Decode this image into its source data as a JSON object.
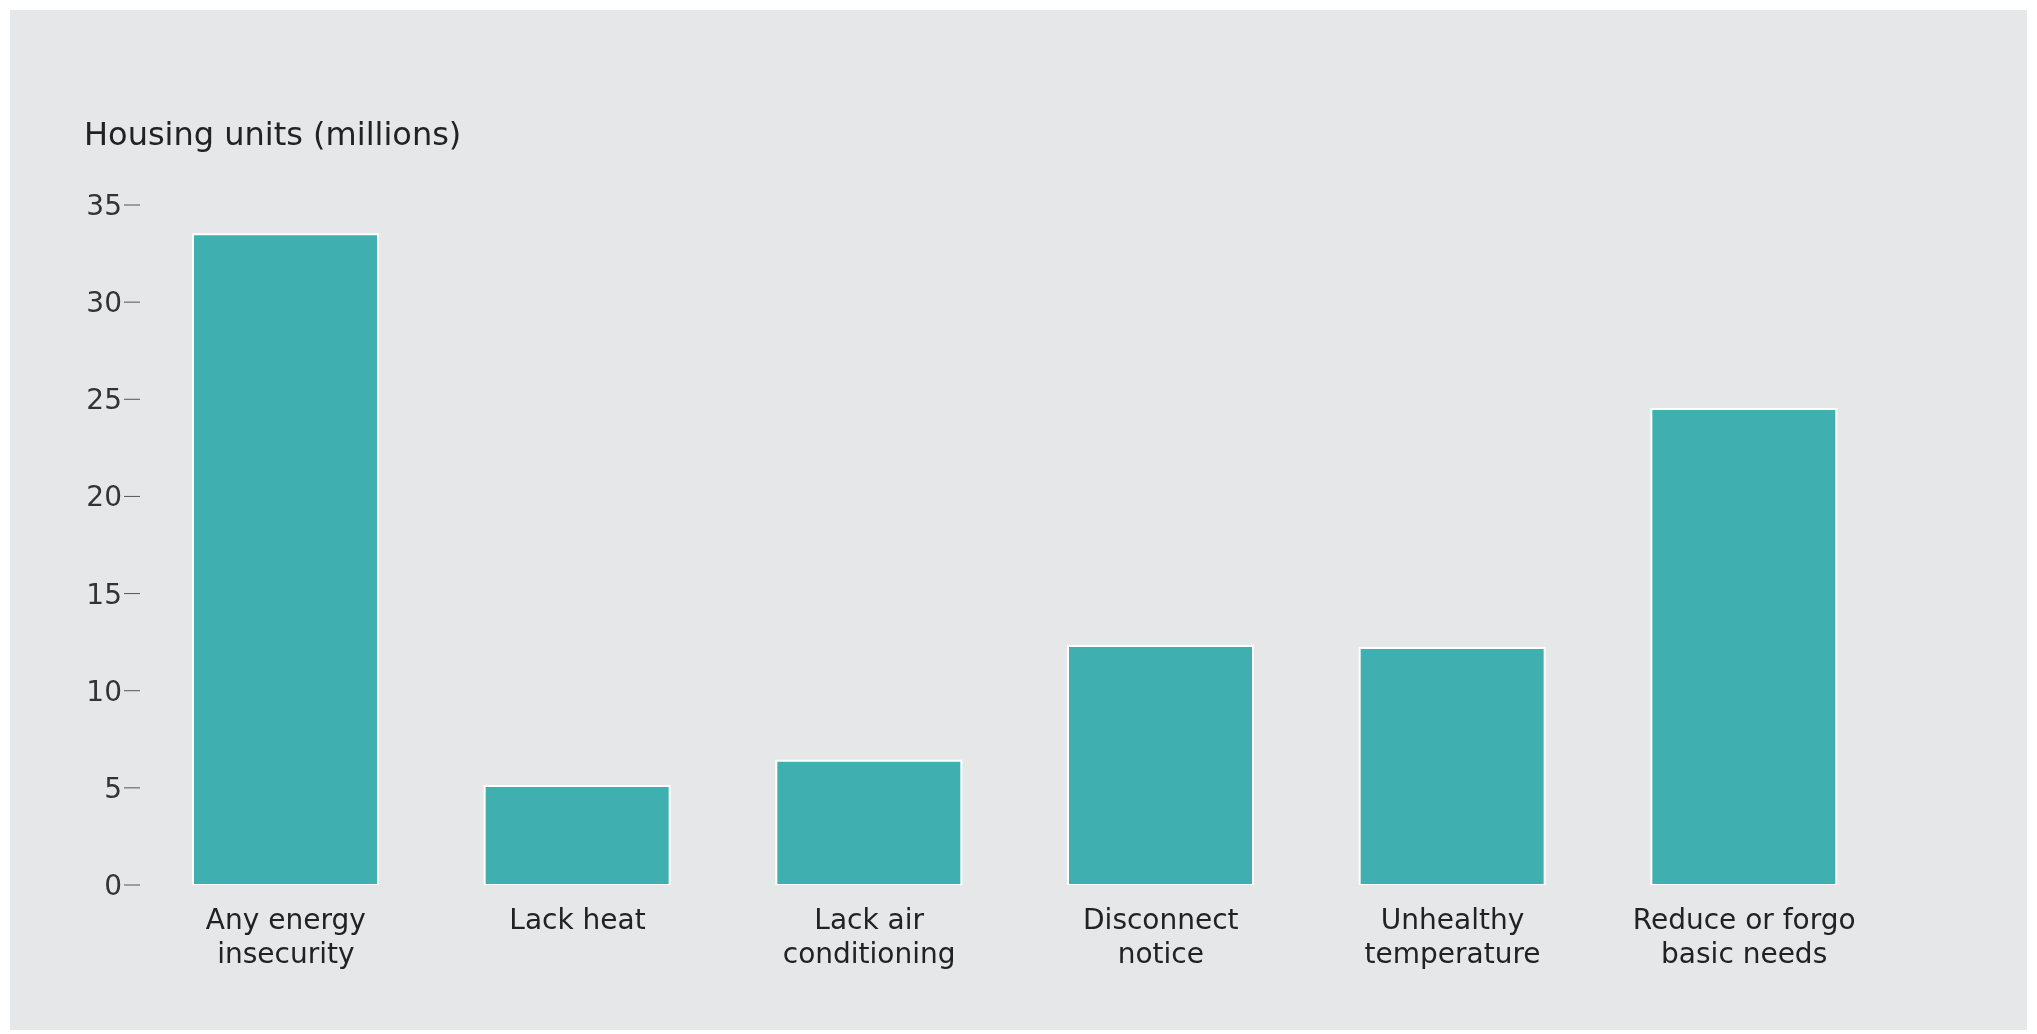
{
  "chart_data": {
    "type": "bar",
    "ylabel": "Housing units (millions)",
    "categories": [
      "Any energy insecurity",
      "Lack heat",
      "Lack air conditioning",
      "Disconnect notice",
      "Unhealthy temperature",
      "Reduce or forgo basic needs"
    ],
    "values": [
      33.5,
      5.1,
      6.4,
      12.3,
      12.2,
      24.5
    ],
    "color": "#40afb0",
    "ylim": [
      0,
      35
    ],
    "yticks": [
      0,
      5,
      10,
      15,
      20,
      25,
      30,
      35
    ],
    "grid": false,
    "legend": false
  }
}
